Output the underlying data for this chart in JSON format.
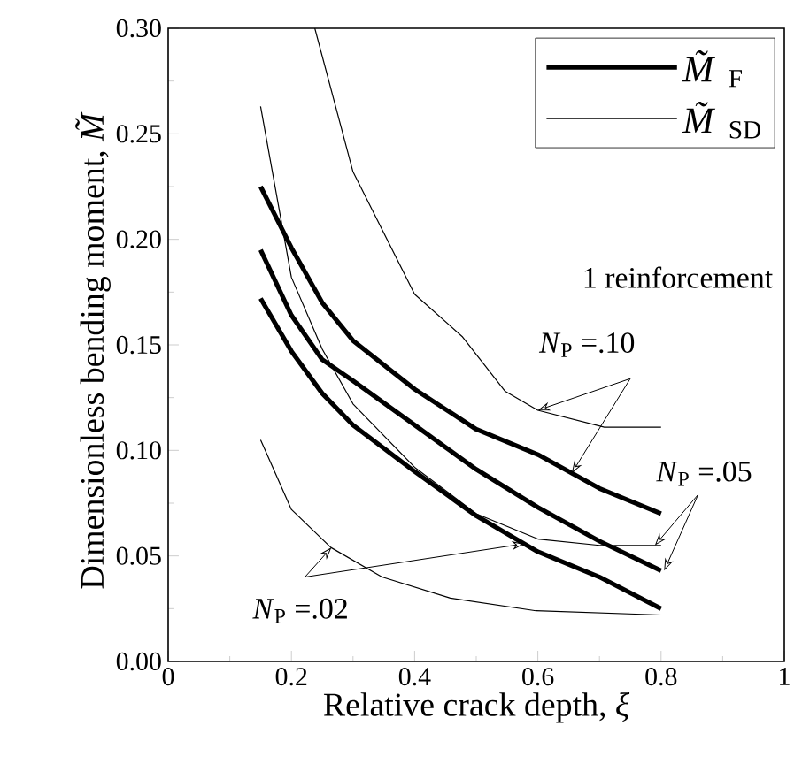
{
  "chart_data": {
    "type": "line",
    "xlabel": "Relative crack depth, *ξ*",
    "ylabel": "Dimensionless bending moment, *M̃*",
    "xlim": [
      0,
      1
    ],
    "ylim": [
      0,
      0.3
    ],
    "xticks": [
      0,
      {
        "value": 0.2,
        "label": "0.2"
      },
      {
        "value": 0.4,
        "label": "0.4"
      },
      {
        "value": 0.6,
        "label": "0.6"
      },
      {
        "value": 0.8,
        "label": "0.8"
      },
      1
    ],
    "yticks": [
      {
        "value": 0,
        "label": "0.00"
      },
      {
        "value": 0.05,
        "label": "0.05"
      },
      {
        "value": 0.1,
        "label": "0.10"
      },
      {
        "value": 0.15,
        "label": "0.15"
      },
      {
        "value": 0.2,
        "label": "0.20"
      },
      {
        "value": 0.25,
        "label": "0.25"
      },
      {
        "value": 0.3,
        "label": "0.30"
      }
    ],
    "legend": "top right",
    "marker": "none",
    "line_style": "solid",
    "grid": false,
    "annotations": [
      "1 reinforcement",
      {
        "text": "*N*$_{P}$ =.10",
        "x": 0.6,
        "y": 0.119
      },
      {
        "text": "*N*$_{P}$ =.05",
        "x": 0.79,
        "y": 0.055
      },
      {
        "text": "*N*$_{P}$ =.02",
        "x": 0.265,
        "y": 0.054
      }
    ],
    "series": [
      {
        "name": "*M̃*$_{F}$",
        "color": "#000000",
        "x": [
          0.15,
          0.2,
          0.25,
          0.3,
          0.4,
          0.5,
          0.6,
          0.7,
          0.8
        ],
        "values": [
          0.225,
          0.196,
          0.17,
          0.152,
          0.129,
          0.11,
          0.098,
          0.082,
          0.07
        ]
      },
      {
        "color": "#000000",
        "x": [
          0.15,
          0.2,
          0.25,
          0.3,
          0.4,
          0.5,
          0.6,
          0.7,
          0.8
        ],
        "values": [
          0.195,
          0.164,
          0.143,
          0.133,
          0.112,
          0.091,
          0.073,
          0.057,
          0.043
        ]
      },
      {
        "color": "#000000",
        "x": [
          0.15,
          0.2,
          0.25,
          0.3,
          0.4,
          0.5,
          0.6,
          0.7,
          0.8
        ],
        "values": [
          0.172,
          0.147,
          0.127,
          0.112,
          0.09,
          0.069,
          0.052,
          0.04,
          0.025
        ]
      },
      {
        "name": "*M̃*$_{SD}$",
        "color": "#000000",
        "x": [
          0.238,
          0.3,
          0.4,
          0.477,
          0.547,
          0.6,
          0.708,
          0.8
        ],
        "values": [
          0.3,
          0.232,
          0.174,
          0.154,
          0.128,
          0.119,
          0.111,
          0.111
        ]
      },
      {
        "color": "#000000",
        "x": [
          0.15,
          0.2,
          0.25,
          0.3,
          0.4,
          0.5,
          0.6,
          0.7,
          0.8
        ],
        "values": [
          0.263,
          0.182,
          0.148,
          0.122,
          0.092,
          0.07,
          0.058,
          0.055,
          0.055
        ]
      },
      {
        "color": "#000000",
        "x": [
          0.15,
          0.2,
          0.264,
          0.347,
          0.458,
          0.597,
          0.8
        ],
        "values": [
          0.105,
          0.072,
          0.054,
          0.04,
          0.03,
          0.024,
          0.022
        ]
      }
    ]
  }
}
